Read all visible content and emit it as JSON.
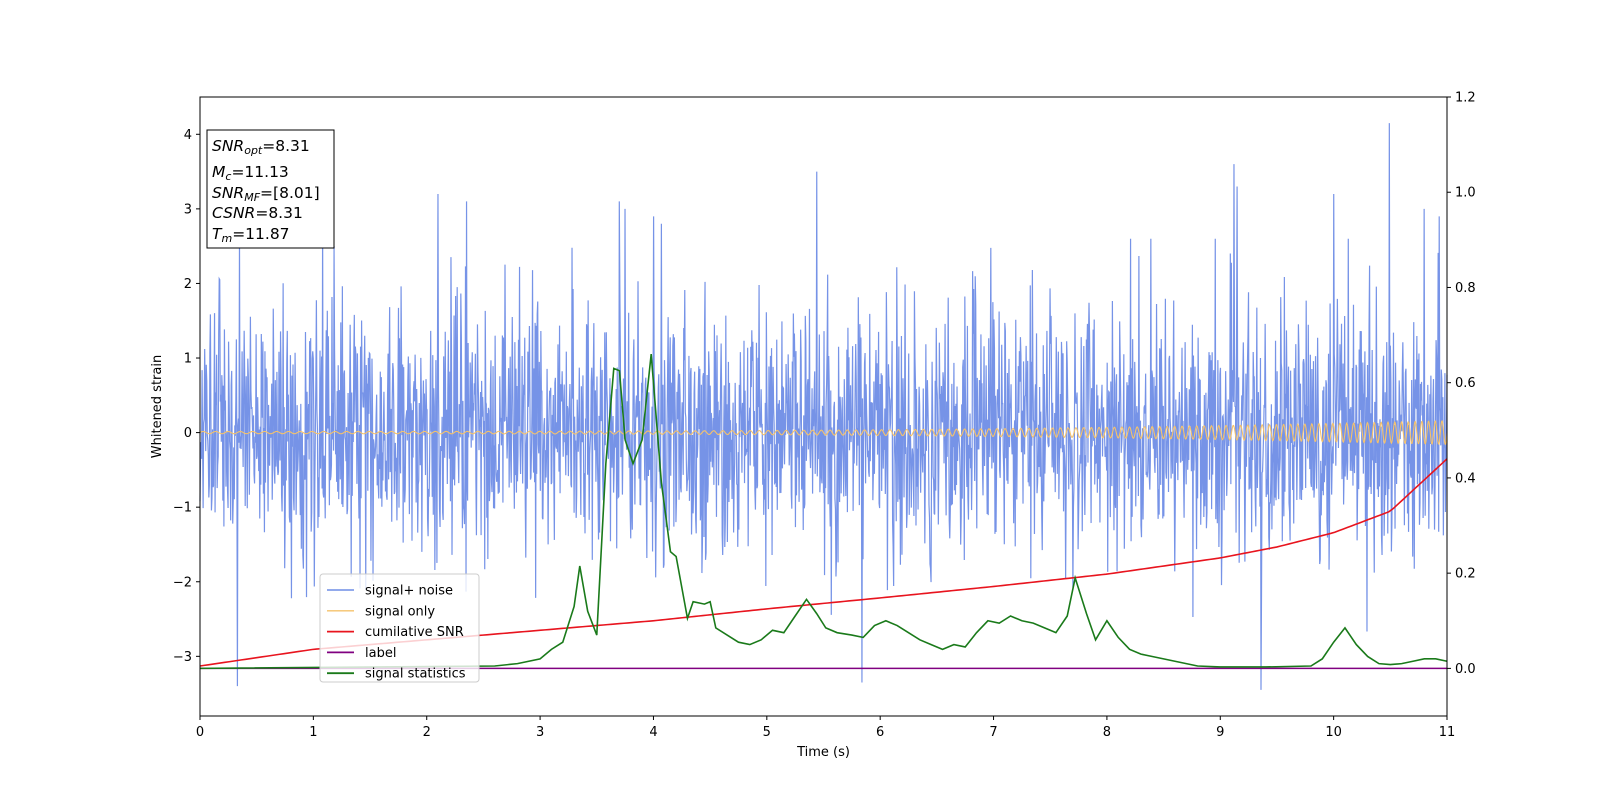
{
  "chart_data": {
    "type": "line",
    "title": "",
    "xlabel": "Time (s)",
    "ylabel": "Whitened strain",
    "xlim": [
      0,
      11
    ],
    "ylim": [
      -3.8,
      4.5
    ],
    "y2lim": [
      -0.1,
      1.2
    ],
    "xticks": [
      0,
      1,
      2,
      3,
      4,
      5,
      6,
      7,
      8,
      9,
      10,
      11
    ],
    "yticks": [
      -3,
      -2,
      -1,
      0,
      1,
      2,
      3,
      4
    ],
    "y2ticks": [
      0.0,
      0.2,
      0.4,
      0.6,
      0.8,
      1.0,
      1.2
    ],
    "y_tick_labels": [
      "−3",
      "−2",
      "−1",
      "0",
      "1",
      "2",
      "3",
      "4"
    ],
    "y2_tick_labels": [
      "0.0",
      "0.2",
      "0.4",
      "0.6",
      "0.8",
      "1.0",
      "1.2"
    ],
    "grid": false,
    "legend_position": "lower-left",
    "series": [
      {
        "name": "signal+ noise",
        "axis": "left",
        "color": "#6f8de6",
        "kind": "noise",
        "std": 0.85,
        "x_range": [
          0,
          11
        ],
        "spikes": [
          [
            0.33,
            -3.4
          ],
          [
            0.35,
            2.6
          ],
          [
            1.08,
            2.8
          ],
          [
            2.1,
            3.2
          ],
          [
            2.35,
            3.1
          ],
          [
            3.7,
            3.1
          ],
          [
            3.75,
            3.0
          ],
          [
            4.0,
            2.9
          ],
          [
            4.07,
            2.8
          ],
          [
            5.44,
            3.5
          ],
          [
            5.84,
            -3.35
          ],
          [
            9.12,
            3.6
          ],
          [
            9.15,
            3.3
          ],
          [
            9.36,
            -3.45
          ],
          [
            10.0,
            3.2
          ],
          [
            10.13,
            2.6
          ],
          [
            10.49,
            4.15
          ],
          [
            10.8,
            3.0
          ],
          [
            10.93,
            2.9
          ]
        ]
      },
      {
        "name": "signal only",
        "axis": "left",
        "color": "#f5c26b",
        "kind": "chirp",
        "x_range": [
          0,
          11
        ],
        "amplitude_start": 0.015,
        "amplitude_end": 0.16
      },
      {
        "name": "cumilative SNR",
        "axis": "right",
        "color": "#e8141e",
        "x": [
          0,
          1,
          2,
          3,
          4,
          5,
          6,
          7,
          8,
          9,
          9.5,
          10,
          10.5,
          11
        ],
        "values": [
          0.005,
          0.04,
          0.06,
          0.08,
          0.1,
          0.125,
          0.148,
          0.172,
          0.198,
          0.232,
          0.255,
          0.285,
          0.33,
          0.44
        ]
      },
      {
        "name": "label",
        "axis": "right",
        "color": "#800080",
        "x": [
          0,
          11
        ],
        "values": [
          0.0,
          0.0
        ]
      },
      {
        "name": "signal statistics",
        "axis": "right",
        "color": "#1a7a1a",
        "x": [
          0,
          2.6,
          2.8,
          3.0,
          3.1,
          3.2,
          3.3,
          3.35,
          3.42,
          3.5,
          3.58,
          3.65,
          3.7,
          3.75,
          3.82,
          3.9,
          3.98,
          4.07,
          4.15,
          4.2,
          4.3,
          4.35,
          4.45,
          4.5,
          4.55,
          4.65,
          4.75,
          4.85,
          4.95,
          5.05,
          5.15,
          5.25,
          5.35,
          5.44,
          5.52,
          5.62,
          5.75,
          5.85,
          5.95,
          6.05,
          6.15,
          6.25,
          6.35,
          6.45,
          6.55,
          6.65,
          6.75,
          6.85,
          6.95,
          7.05,
          7.15,
          7.25,
          7.35,
          7.45,
          7.55,
          7.65,
          7.72,
          7.82,
          7.9,
          8.0,
          8.1,
          8.2,
          8.3,
          8.4,
          8.5,
          8.6,
          8.7,
          8.8,
          9.0,
          9.4,
          9.8,
          9.9,
          10.0,
          10.1,
          10.2,
          10.3,
          10.4,
          10.5,
          10.6,
          10.7,
          10.8,
          10.9,
          11.0
        ],
        "values": [
          0.0,
          0.005,
          0.01,
          0.02,
          0.04,
          0.055,
          0.13,
          0.215,
          0.12,
          0.07,
          0.43,
          0.63,
          0.625,
          0.48,
          0.43,
          0.48,
          0.66,
          0.39,
          0.245,
          0.235,
          0.105,
          0.14,
          0.135,
          0.14,
          0.085,
          0.07,
          0.055,
          0.05,
          0.06,
          0.08,
          0.075,
          0.11,
          0.145,
          0.115,
          0.085,
          0.075,
          0.07,
          0.065,
          0.09,
          0.1,
          0.09,
          0.075,
          0.06,
          0.05,
          0.04,
          0.05,
          0.045,
          0.075,
          0.1,
          0.095,
          0.11,
          0.1,
          0.095,
          0.085,
          0.075,
          0.11,
          0.19,
          0.115,
          0.06,
          0.1,
          0.065,
          0.04,
          0.03,
          0.025,
          0.02,
          0.015,
          0.01,
          0.005,
          0.003,
          0.003,
          0.005,
          0.02,
          0.055,
          0.085,
          0.05,
          0.025,
          0.01,
          0.008,
          0.01,
          0.015,
          0.02,
          0.02,
          0.015
        ]
      }
    ],
    "annotation": {
      "lines": [
        {
          "sym": "SNR",
          "sub": "opt",
          "val": "=8.31"
        },
        {
          "sym": "M",
          "sub": "c",
          "val": "=11.13"
        },
        {
          "sym": "SNR",
          "sub": "MF",
          "val": "=[8.01]"
        },
        {
          "sym": "CSNR",
          "sub": "",
          "val": "=8.31"
        },
        {
          "sym": "T",
          "sub": "m",
          "val": "=11.87"
        }
      ]
    }
  }
}
